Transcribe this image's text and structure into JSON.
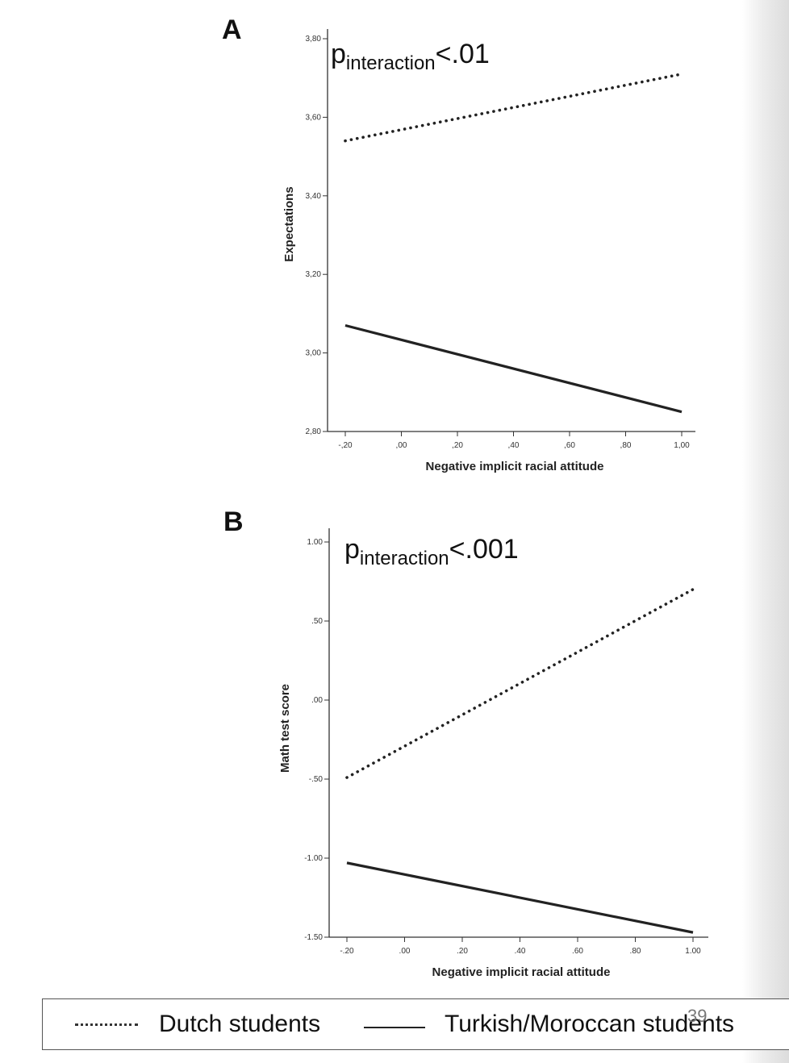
{
  "chart_data": [
    {
      "type": "line",
      "panel": "A",
      "annotation": {
        "main": "p",
        "sub": "interaction",
        "rest": "<.01"
      },
      "xlabel": "Negative implicit racial attitude",
      "ylabel": "Expectations",
      "xlim": [
        -0.2,
        1.0
      ],
      "ylim": [
        2.8,
        3.8
      ],
      "xticks": [
        "-,20",
        ",00",
        ",20",
        ",40",
        ",60",
        ",80",
        "1,00"
      ],
      "xtick_values": [
        -0.2,
        0.0,
        0.2,
        0.4,
        0.6,
        0.8,
        1.0
      ],
      "yticks": [
        "3,80",
        "3,60",
        "3,40",
        "3,20",
        "3,00",
        "2,80"
      ],
      "ytick_values": [
        3.8,
        3.6,
        3.4,
        3.2,
        3.0,
        2.8
      ],
      "series": [
        {
          "name": "Dutch students",
          "style": "dotted",
          "x": [
            -0.2,
            1.0
          ],
          "y": [
            3.54,
            3.71
          ]
        },
        {
          "name": "Turkish/Moroccan students",
          "style": "solid",
          "x": [
            -0.2,
            1.0
          ],
          "y": [
            3.07,
            2.85
          ]
        }
      ]
    },
    {
      "type": "line",
      "panel": "B",
      "annotation": {
        "main": "p",
        "sub": "interaction",
        "rest": "<.001"
      },
      "xlabel": "Negative implicit racial attitude",
      "ylabel": "Math test score",
      "xlim": [
        -0.2,
        1.0
      ],
      "ylim": [
        -1.5,
        1.0
      ],
      "xticks": [
        "-.20",
        ".00",
        ".20",
        ".40",
        ".60",
        ".80",
        "1.00"
      ],
      "xtick_values": [
        -0.2,
        0.0,
        0.2,
        0.4,
        0.6,
        0.8,
        1.0
      ],
      "yticks": [
        "1.00",
        ".50",
        ".00",
        "-.50",
        "-1.00",
        "-1.50"
      ],
      "ytick_values": [
        1.0,
        0.5,
        0.0,
        -0.5,
        -1.0,
        -1.5
      ],
      "series": [
        {
          "name": "Dutch students",
          "style": "dotted",
          "x": [
            -0.2,
            1.0
          ],
          "y": [
            -0.49,
            0.7
          ]
        },
        {
          "name": "Turkish/Moroccan students",
          "style": "solid",
          "x": [
            -0.2,
            1.0
          ],
          "y": [
            -1.03,
            -1.47
          ]
        }
      ]
    }
  ],
  "legend": {
    "dutch": "Dutch students",
    "turkish": "Turkish/Moroccan students"
  },
  "page_number": "39"
}
